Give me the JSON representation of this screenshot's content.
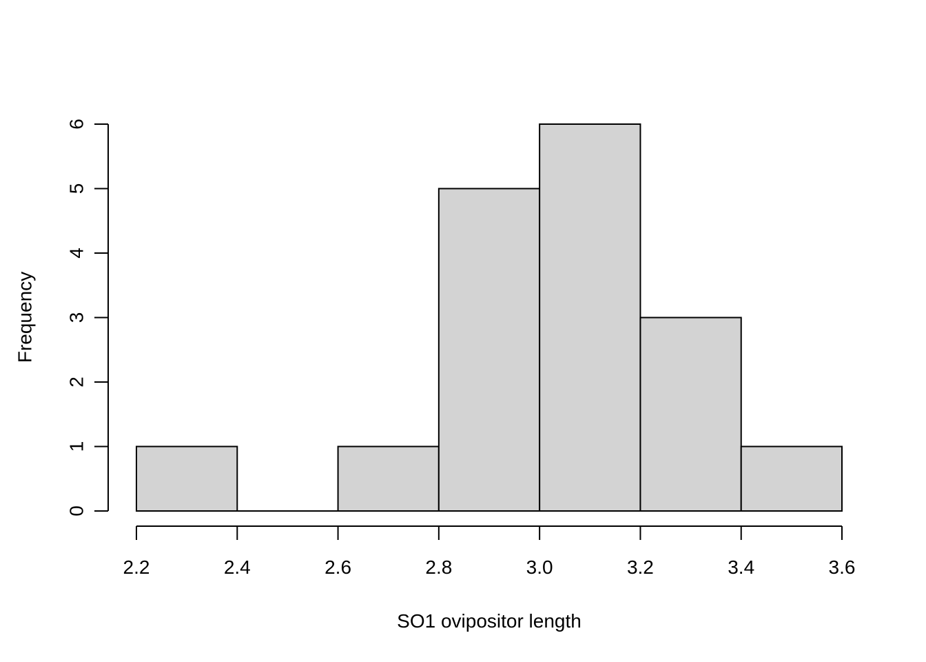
{
  "chart_data": {
    "type": "histogram",
    "title": "",
    "xlabel": "SO1 ovipositor length",
    "ylabel": "Frequency",
    "bins": [
      {
        "from": 2.2,
        "to": 2.4,
        "count": 1
      },
      {
        "from": 2.4,
        "to": 2.6,
        "count": 0
      },
      {
        "from": 2.6,
        "to": 2.8,
        "count": 1
      },
      {
        "from": 2.8,
        "to": 3.0,
        "count": 5
      },
      {
        "from": 3.0,
        "to": 3.2,
        "count": 6
      },
      {
        "from": 3.2,
        "to": 3.4,
        "count": 3
      },
      {
        "from": 3.4,
        "to": 3.6,
        "count": 1
      }
    ],
    "xlim": [
      2.2,
      3.6
    ],
    "ylim": [
      0,
      6
    ],
    "x_ticks": [
      "2.2",
      "2.4",
      "2.6",
      "2.8",
      "3.0",
      "3.2",
      "3.4",
      "3.6"
    ],
    "y_ticks": [
      "0",
      "1",
      "2",
      "3",
      "4",
      "5",
      "6"
    ],
    "bar_fill": "#d3d3d3",
    "bar_border": "#000000"
  }
}
